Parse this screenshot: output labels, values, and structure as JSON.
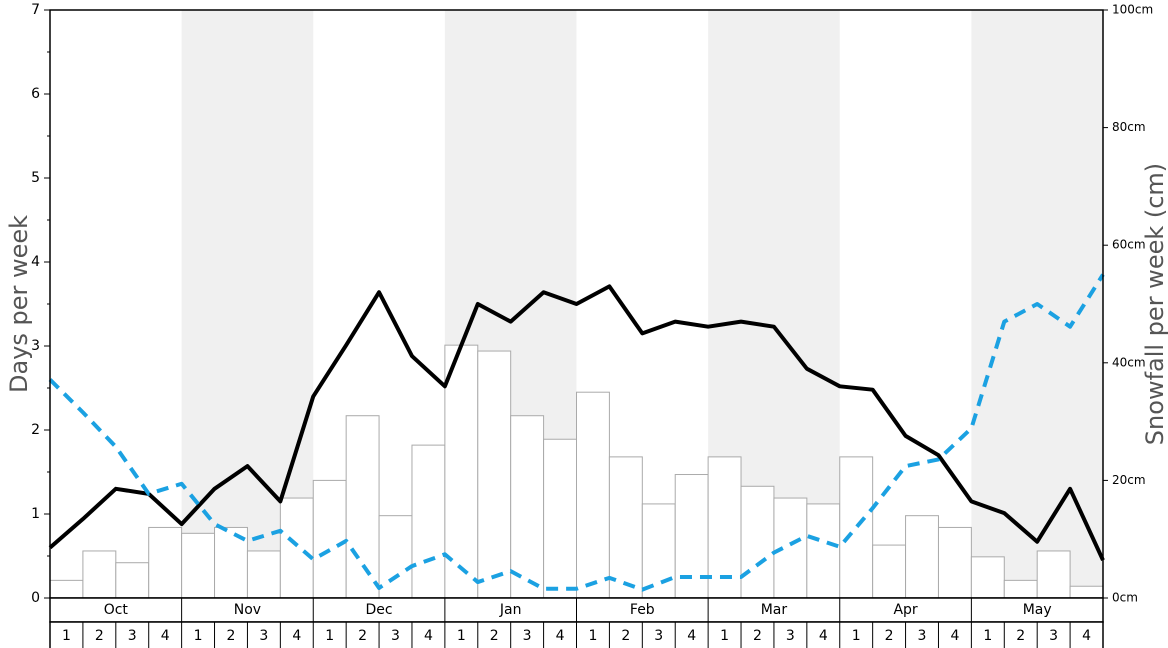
{
  "chart_data": {
    "type": "bar-line",
    "ylabel": "Days per week",
    "y2label": "Snowfall per week (cm)",
    "ylim": [
      0,
      7
    ],
    "yticks": [
      0,
      1,
      2,
      3,
      4,
      5,
      6,
      7
    ],
    "yminorticks": [
      0.5,
      1.5,
      2.5,
      3.5,
      4.5,
      5.5,
      6.5
    ],
    "y2lim": [
      0,
      100
    ],
    "y2ticks": [
      {
        "value": 0,
        "label": "0cm"
      },
      {
        "value": 20,
        "label": "20cm"
      },
      {
        "value": 40,
        "label": "40cm"
      },
      {
        "value": 60,
        "label": "60cm"
      },
      {
        "value": 80,
        "label": "80cm"
      },
      {
        "value": 100,
        "label": "100cm"
      }
    ],
    "months": [
      "Oct",
      "Nov",
      "Dec",
      "Jan",
      "Feb",
      "Mar",
      "Apr",
      "May"
    ],
    "shade_color": "#f0f0f0",
    "categories": [
      "1",
      "2",
      "3",
      "4",
      "1",
      "2",
      "3",
      "4",
      "1",
      "2",
      "3",
      "4",
      "1",
      "2",
      "3",
      "4",
      "1",
      "2",
      "3",
      "4",
      "1",
      "2",
      "3",
      "4",
      "1",
      "2",
      "3",
      "4",
      "1",
      "2",
      "3",
      "4"
    ],
    "bars": {
      "axis": "y2",
      "color": "#ffffff",
      "edge_color": "#aaaaaa",
      "values": [
        3,
        8,
        6,
        12,
        11,
        12,
        8,
        17,
        20,
        31,
        14,
        26,
        43,
        42,
        31,
        27,
        35,
        24,
        16,
        21,
        24,
        19,
        17,
        16,
        24,
        9,
        14,
        12,
        7,
        3,
        8,
        2
      ]
    },
    "x": [
      0,
      1,
      2,
      3,
      4,
      5,
      6,
      7,
      8,
      9,
      10,
      11,
      12,
      13,
      14,
      15,
      16,
      17,
      18,
      19,
      20,
      21,
      22,
      23,
      24,
      25,
      26,
      27,
      28,
      29,
      30,
      31,
      32
    ],
    "xlim": [
      0,
      32
    ],
    "series": [
      {
        "color": "#000000",
        "dashed": false,
        "values": [
          0.6,
          0.94,
          1.3,
          1.24,
          0.88,
          1.3,
          1.57,
          1.15,
          2.4,
          3.01,
          3.64,
          2.88,
          2.52,
          3.5,
          3.29,
          3.64,
          3.5,
          3.71,
          3.15,
          3.29,
          3.23,
          3.29,
          3.23,
          2.73,
          2.52,
          2.48,
          1.93,
          1.7,
          1.15,
          1.01,
          0.67,
          1.3,
          0.45
        ]
      },
      {
        "color": "#1ba1e2",
        "dashed": true,
        "values": [
          2.6,
          2.21,
          1.8,
          1.24,
          1.36,
          0.88,
          0.68,
          0.8,
          0.46,
          0.68,
          0.12,
          0.38,
          0.52,
          0.19,
          0.32,
          0.11,
          0.11,
          0.24,
          0.1,
          0.25,
          0.25,
          0.25,
          0.54,
          0.74,
          0.61,
          1.07,
          1.57,
          1.65,
          2.02,
          3.29,
          3.5,
          3.23,
          3.85
        ]
      }
    ]
  }
}
